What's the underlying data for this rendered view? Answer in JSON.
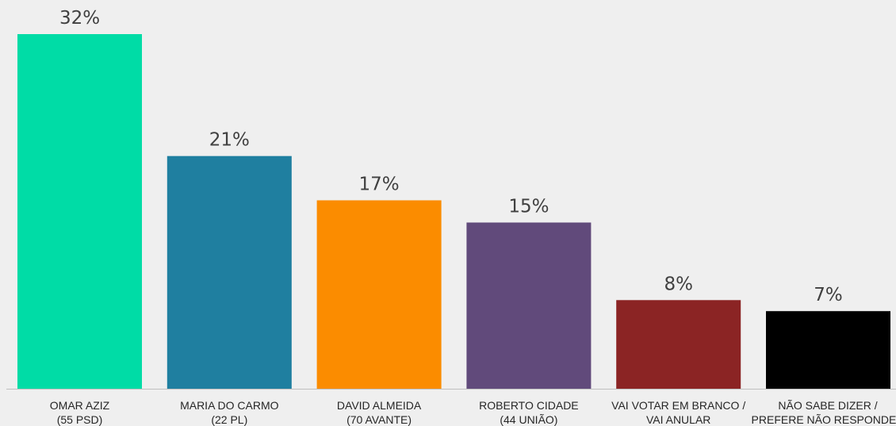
{
  "chart_data": {
    "type": "bar",
    "categories": [
      [
        "OMAR AZIZ",
        "(55 PSD)"
      ],
      [
        "MARIA DO CARMO",
        "(22 PL)"
      ],
      [
        "DAVID ALMEIDA",
        "(70 AVANTE)"
      ],
      [
        "ROBERTO CIDADE",
        "(44 UNIÃO)"
      ],
      [
        "VAI VOTAR EM BRANCO /",
        "VAI ANULAR"
      ],
      [
        "NÃO SABE DIZER /",
        "PREFERE NÃO RESPONDER"
      ]
    ],
    "values": [
      32,
      21,
      17,
      15,
      8,
      7
    ],
    "value_labels": [
      "32%",
      "21%",
      "17%",
      "15%",
      "8%",
      "7%"
    ],
    "colors": [
      "#00dca6",
      "#1f7fa0",
      "#fb8c00",
      "#614a7b",
      "#8b2424",
      "#000000"
    ],
    "title": "",
    "xlabel": "",
    "ylabel": "",
    "ylim": [
      0,
      32
    ],
    "grid": false,
    "legend": "none"
  }
}
